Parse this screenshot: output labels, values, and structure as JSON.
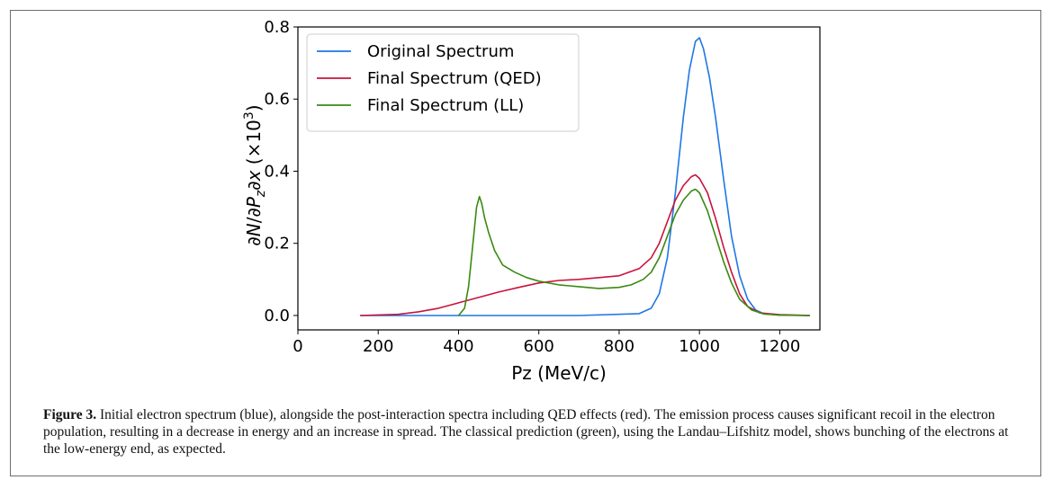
{
  "chart_data": {
    "type": "line",
    "xlabel": "Pz (MeV/c)",
    "ylabel": "∂N/∂P_z∂x (×10^3)",
    "xlim": [
      0,
      1300
    ],
    "ylim": [
      -0.04,
      0.8
    ],
    "x_ticks": [
      "0",
      "200",
      "400",
      "600",
      "800",
      "1000",
      "1200"
    ],
    "y_ticks": [
      "0.0",
      "0.2",
      "0.4",
      "0.6",
      "0.8"
    ],
    "legend_position": "upper-left",
    "grid": false,
    "series": [
      {
        "name": "Original Spectrum",
        "color": "#1f77e4",
        "x": [
          155,
          400,
          700,
          850,
          880,
          900,
          920,
          940,
          960,
          975,
          990,
          1000,
          1010,
          1025,
          1040,
          1060,
          1080,
          1100,
          1120,
          1140,
          1160,
          1200,
          1275
        ],
        "y": [
          0.0,
          0.0,
          0.0,
          0.005,
          0.02,
          0.06,
          0.16,
          0.34,
          0.55,
          0.68,
          0.76,
          0.77,
          0.74,
          0.66,
          0.55,
          0.38,
          0.22,
          0.11,
          0.045,
          0.015,
          0.005,
          0.001,
          0.0
        ]
      },
      {
        "name": "Final Spectrum (QED)",
        "color": "#c8143c",
        "x": [
          155,
          250,
          300,
          350,
          400,
          450,
          500,
          550,
          600,
          650,
          700,
          750,
          800,
          850,
          880,
          900,
          920,
          940,
          960,
          980,
          990,
          1000,
          1020,
          1040,
          1060,
          1080,
          1100,
          1120,
          1150,
          1200,
          1275
        ],
        "y": [
          0.0,
          0.003,
          0.01,
          0.02,
          0.035,
          0.05,
          0.065,
          0.078,
          0.09,
          0.097,
          0.1,
          0.105,
          0.11,
          0.13,
          0.16,
          0.2,
          0.26,
          0.32,
          0.36,
          0.385,
          0.39,
          0.38,
          0.34,
          0.27,
          0.19,
          0.12,
          0.06,
          0.025,
          0.007,
          0.002,
          0.0
        ]
      },
      {
        "name": "Final Spectrum (LL)",
        "color": "#3a8a12",
        "x": [
          400,
          415,
          425,
          435,
          445,
          452,
          458,
          465,
          475,
          490,
          510,
          540,
          570,
          600,
          650,
          700,
          750,
          800,
          830,
          860,
          880,
          900,
          920,
          940,
          960,
          980,
          990,
          1000,
          1020,
          1040,
          1060,
          1080,
          1100,
          1130,
          1160,
          1200,
          1275
        ],
        "y": [
          0.0,
          0.02,
          0.08,
          0.19,
          0.3,
          0.33,
          0.31,
          0.27,
          0.23,
          0.18,
          0.14,
          0.12,
          0.105,
          0.095,
          0.085,
          0.08,
          0.075,
          0.078,
          0.085,
          0.1,
          0.12,
          0.16,
          0.22,
          0.28,
          0.32,
          0.345,
          0.35,
          0.34,
          0.29,
          0.22,
          0.15,
          0.09,
          0.045,
          0.015,
          0.004,
          0.001,
          0.0
        ]
      }
    ]
  },
  "caption": {
    "label": "Figure 3.",
    "text": "Initial electron spectrum (blue), alongside the post-interaction spectra including QED effects (red). The emission process causes significant recoil in the electron population, resulting in a decrease in energy and an increase in spread. The classical prediction (green), using the Landau–Lifshitz model, shows bunching of the electrons at the low-energy end, as expected."
  }
}
